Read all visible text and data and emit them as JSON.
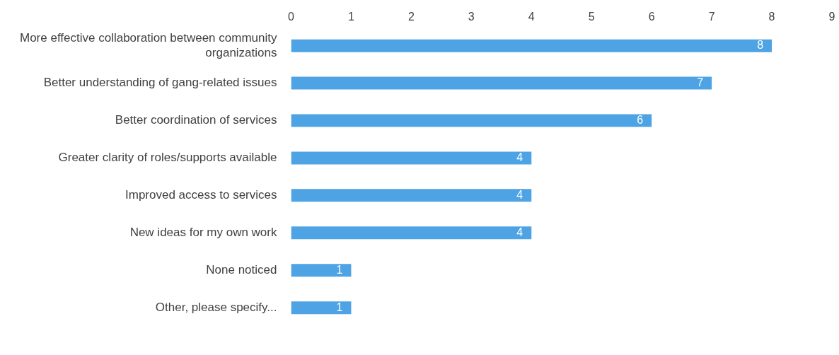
{
  "chart_data": {
    "type": "bar",
    "orientation": "horizontal",
    "categories": [
      "More effective collaboration between community organizations",
      "Better understanding of gang-related issues",
      "Better coordination of services",
      "Greater clarity of roles/supports available",
      "Improved access to services",
      "New ideas for my own work",
      "None noticed",
      "Other, please specify..."
    ],
    "values": [
      8,
      7,
      6,
      4,
      4,
      4,
      1,
      1
    ],
    "color": "#4da3e3",
    "xlim": [
      0,
      9
    ],
    "xticks": [
      0,
      1,
      2,
      3,
      4,
      5,
      6,
      7,
      8,
      9
    ],
    "grid": false,
    "data_labels": true
  }
}
